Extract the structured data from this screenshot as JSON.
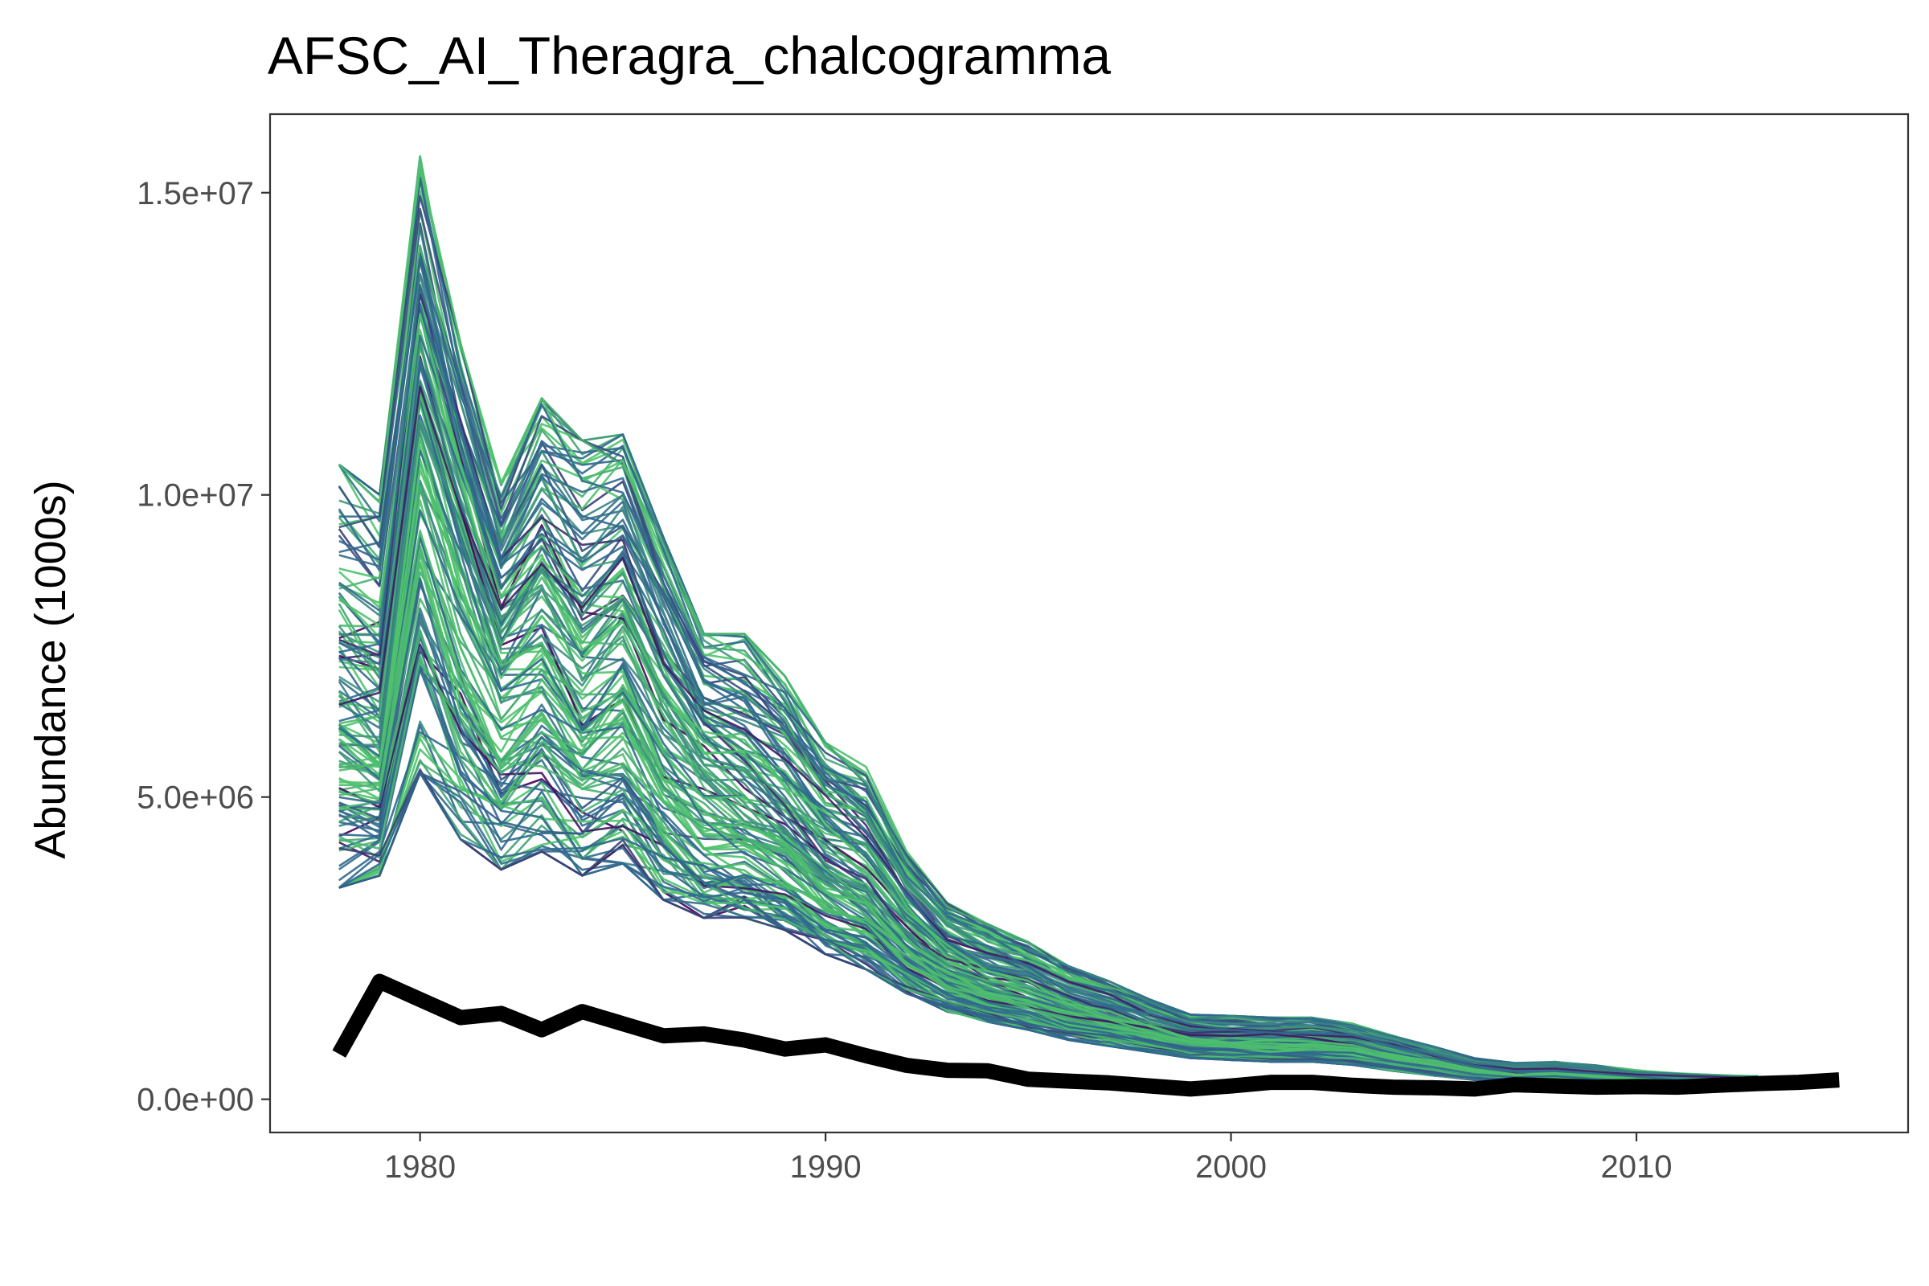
{
  "chart_data": {
    "type": "line",
    "title": "AFSC_AI_Theragra_chalcogramma",
    "xlabel": "",
    "ylabel": "Abundance (1000s)",
    "xlim": [
      1976.3,
      2016.7
    ],
    "ylim": [
      -550000,
      16300000
    ],
    "x_ticks": [
      1980,
      1990,
      2000,
      2010
    ],
    "x_tick_labels": [
      "1980",
      "1990",
      "2000",
      "2010"
    ],
    "y_ticks": [
      0,
      5000000,
      10000000,
      15000000
    ],
    "y_tick_labels": [
      "0.0e+00",
      "5.0e+06",
      "1.0e+07",
      "1.5e+07"
    ],
    "grid": false,
    "legend": "none",
    "ensemble": {
      "description_of_shown_lines": "many simulated trajectories",
      "x": [
        1978,
        1979,
        1980,
        1981,
        1982,
        1983,
        1984,
        1985,
        1986,
        1987,
        1988,
        1989,
        1990,
        1991,
        1992,
        1993,
        1994,
        1995,
        1996,
        1997,
        1998,
        1999,
        2000,
        2001,
        2002,
        2003,
        2004,
        2005,
        2006,
        2007,
        2008,
        2009,
        2010,
        2011,
        2012,
        2013
      ],
      "median": [
        6300000,
        5900000,
        11200000,
        9200000,
        7400000,
        8100000,
        7000000,
        7600000,
        6300000,
        5500000,
        5100000,
        4600000,
        3950000,
        3550000,
        2800000,
        2250000,
        1950000,
        1750000,
        1480000,
        1300000,
        1130000,
        970000,
        950000,
        930000,
        930000,
        870000,
        720000,
        600000,
        470000,
        410000,
        420000,
        380000,
        330000,
        300000,
        280000,
        270000
      ],
      "low": [
        3500000,
        3700000,
        5400000,
        4300000,
        3800000,
        4100000,
        3700000,
        3900000,
        3300000,
        3000000,
        3000000,
        2800000,
        2400000,
        2150000,
        1750000,
        1450000,
        1280000,
        1150000,
        980000,
        880000,
        780000,
        680000,
        650000,
        620000,
        620000,
        570000,
        470000,
        390000,
        320000,
        290000,
        290000,
        270000,
        240000,
        220000,
        210000,
        200000
      ],
      "high": [
        10500000,
        10000000,
        15600000,
        12500000,
        10200000,
        11600000,
        10900000,
        11000000,
        9300000,
        7700000,
        7700000,
        7000000,
        5900000,
        5500000,
        4100000,
        3250000,
        2900000,
        2600000,
        2200000,
        1950000,
        1650000,
        1400000,
        1380000,
        1350000,
        1350000,
        1250000,
        1050000,
        870000,
        680000,
        600000,
        620000,
        560000,
        480000,
        430000,
        400000,
        380000
      ],
      "color_start": "#440154",
      "color_mid": "#31688e",
      "color_end": "#4ec36b",
      "count": 140
    },
    "series": [
      {
        "color": "#000000",
        "x": [
          1978,
          1979,
          1980,
          1981,
          1982,
          1983,
          1984,
          1985,
          1986,
          1987,
          1988,
          1989,
          1990,
          1991,
          1992,
          1993,
          1994,
          1995,
          1996,
          1997,
          1998,
          1999,
          2000,
          2001,
          2002,
          2003,
          2004,
          2005,
          2006,
          2007,
          2008,
          2009,
          2010,
          2011,
          2012,
          2013,
          2014,
          2015
        ],
        "values": [
          750000,
          1950000,
          1650000,
          1350000,
          1420000,
          1150000,
          1450000,
          1250000,
          1050000,
          1080000,
          980000,
          830000,
          900000,
          720000,
          560000,
          480000,
          470000,
          330000,
          300000,
          270000,
          220000,
          170000,
          220000,
          280000,
          280000,
          230000,
          200000,
          190000,
          170000,
          240000,
          220000,
          200000,
          210000,
          200000,
          230000,
          260000,
          280000,
          320000
        ]
      }
    ]
  }
}
